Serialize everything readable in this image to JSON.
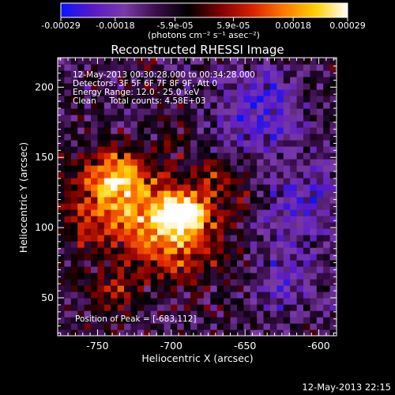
{
  "colorbar": {
    "tick_labels": [
      "-0.00029",
      "-0.00018",
      "-5.9e-05",
      "5.9e-05",
      "0.00018",
      "0.00029"
    ],
    "tick_values": [
      -0.00029,
      -0.00018,
      -5.9e-05,
      5.9e-05,
      0.00018,
      0.00029
    ],
    "range": [
      -0.00029,
      0.00029
    ],
    "unit_label": "(photons cm⁻² s⁻¹ asec⁻²)"
  },
  "annotations": {
    "time_range": "12-May-2013 00:30:28.000 to 00:34:28.000",
    "detectors": "Detectors: 3F 5F 6F 7F 8F 9F, Att 0",
    "energy": "Energy Range: 12.0 - 25.0 keV",
    "clean": "Clean     Total counts: 4.58E+03",
    "peak": "Position of Peak = [-683,112]"
  },
  "footer": {
    "timestamp": "12-May-2013 22:15"
  },
  "chart_data": {
    "type": "heatmap",
    "title": "Reconstructed RHESSI Image",
    "xlabel": "Heliocentric X (arcsec)",
    "ylabel": "Heliocentric Y (arcsec)",
    "xlim": [
      -777,
      -588
    ],
    "ylim": [
      23,
      221
    ],
    "x_ticks": [
      -750,
      -700,
      -650,
      -600
    ],
    "x_tick_labels": [
      "-750",
      "-700",
      "-650",
      "-600"
    ],
    "y_ticks": [
      50,
      100,
      150,
      200
    ],
    "y_tick_labels": [
      "50",
      "100",
      "150",
      "200"
    ],
    "colormap": [
      "#0a14ff",
      "#5a18c8",
      "#7a3aa8",
      "#3a0d4a",
      "#000000",
      "#800000",
      "#d82000",
      "#ff7a00",
      "#ffd000",
      "#ffffff"
    ],
    "peak": {
      "x": -683,
      "y": 112
    },
    "sources": [
      {
        "x": -700,
        "y": 100,
        "sigma": 22,
        "amp": 1.0
      },
      {
        "x": -692,
        "y": 112,
        "sigma": 10,
        "amp": 0.75
      },
      {
        "x": -740,
        "y": 125,
        "sigma": 18,
        "amp": 0.85
      },
      {
        "x": -735,
        "y": 140,
        "sigma": 10,
        "amp": 0.5
      },
      {
        "x": -670,
        "y": 138,
        "sigma": 9,
        "amp": 0.35
      },
      {
        "x": -760,
        "y": 100,
        "sigma": 10,
        "amp": 0.35
      },
      {
        "x": -740,
        "y": 55,
        "sigma": 12,
        "amp": 0.35
      },
      {
        "x": -700,
        "y": 165,
        "sigma": 9,
        "amp": 0.2
      },
      {
        "x": -650,
        "y": 120,
        "sigma": 8,
        "amp": 0.25
      }
    ],
    "background_level": -0.28,
    "negative_lobes": [
      {
        "x": -640,
        "y": 185,
        "sigma": 20,
        "amp": -0.55
      },
      {
        "x": -610,
        "y": 120,
        "sigma": 22,
        "amp": -0.4
      },
      {
        "x": -620,
        "y": 60,
        "sigma": 18,
        "amp": -0.35
      }
    ]
  }
}
